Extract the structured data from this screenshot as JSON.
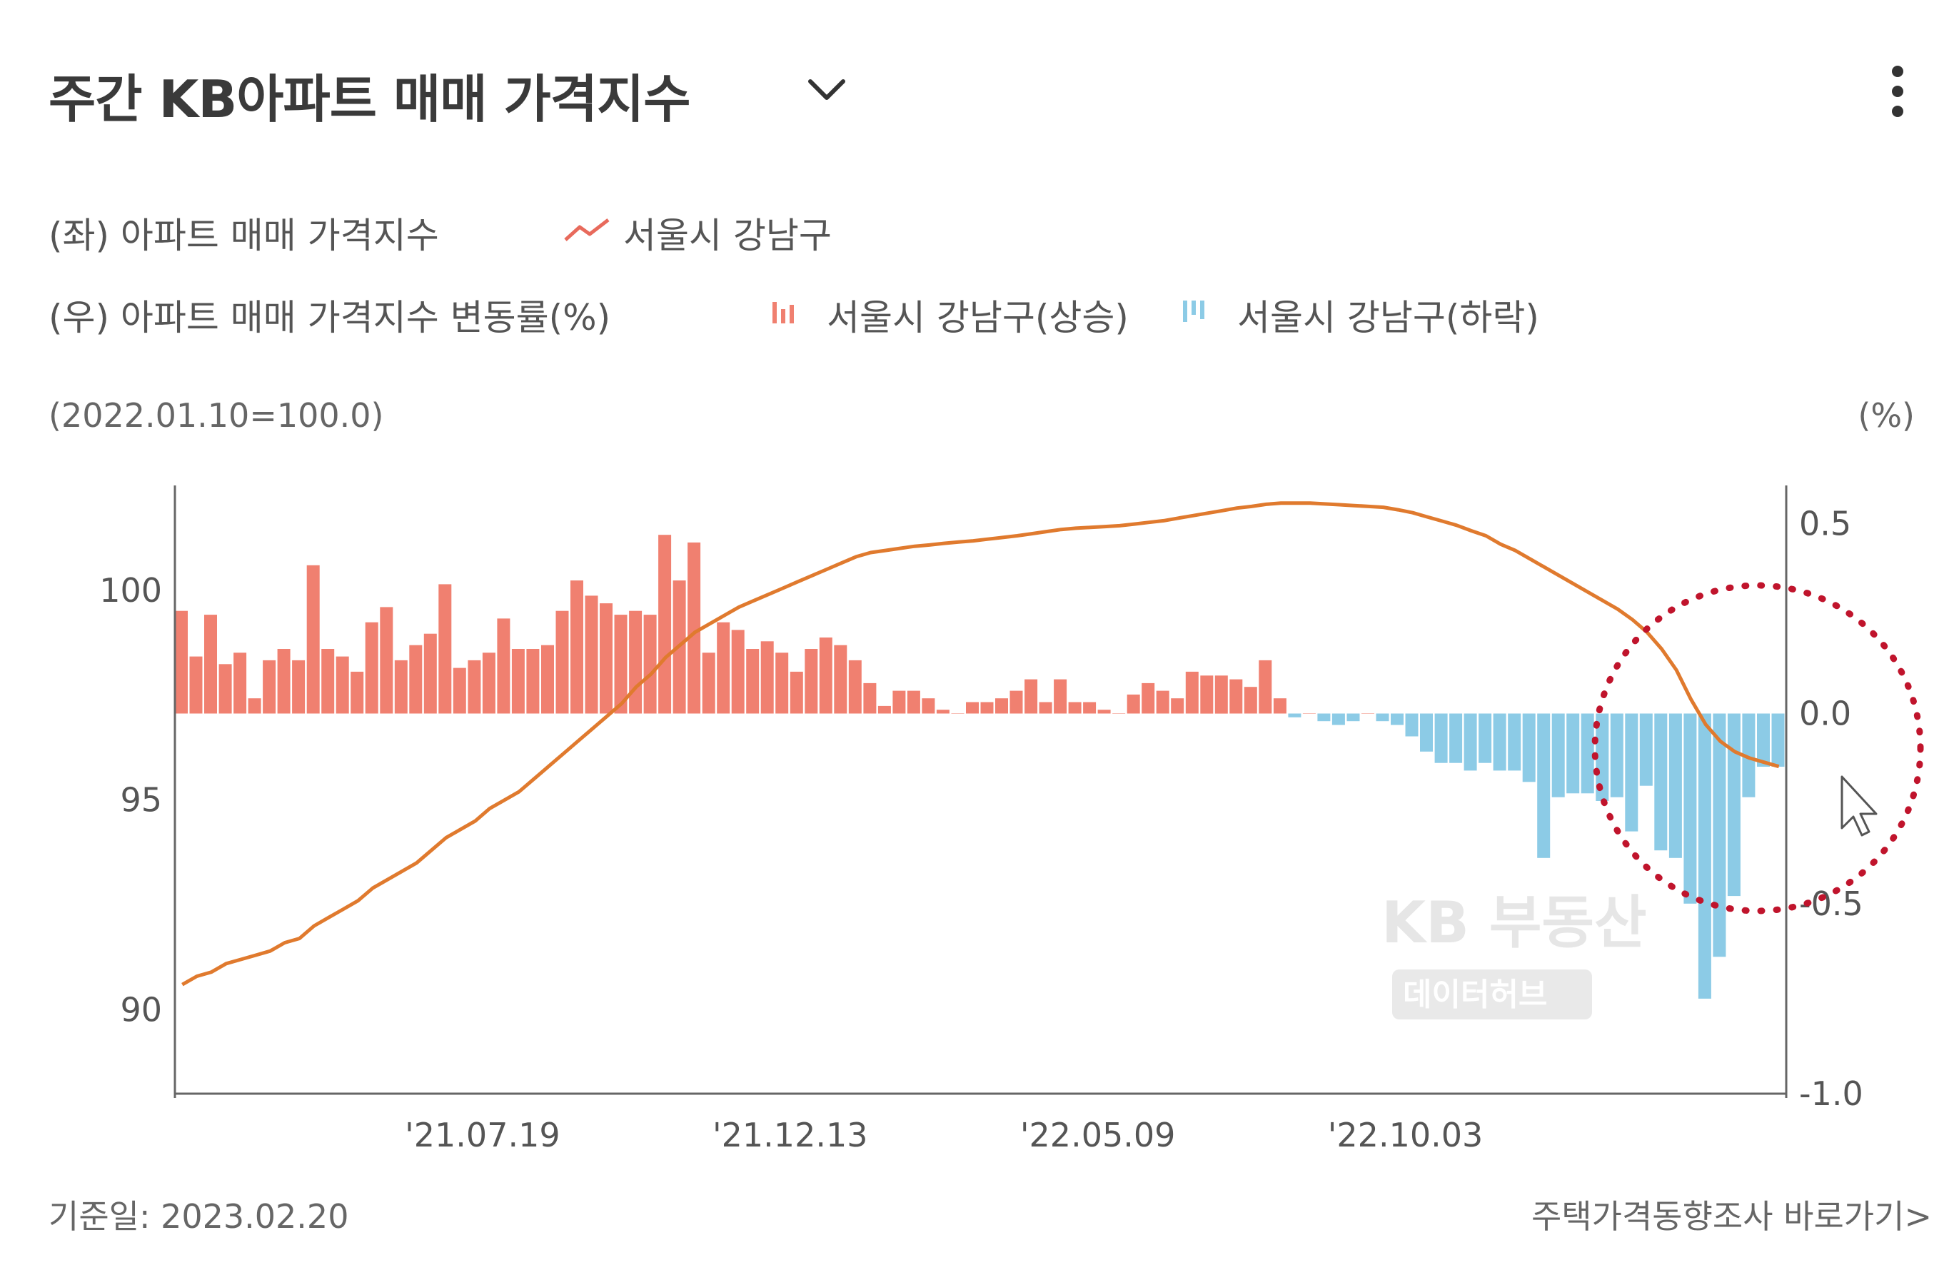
{
  "header": {
    "title": "주간 KB아파트 매매 가격지수",
    "dropdown_icon": "chevron-down-icon",
    "menu_icon": "kebab-menu-icon"
  },
  "legend": {
    "left_axis_label": "(좌) 아파트 매매 가격지수",
    "right_axis_label": "(우) 아파트 매매 가격지수 변동률(%)",
    "line_series": "서울시 강남구",
    "up_series": "서울시 강남구(상승)",
    "down_series": "서울시 강남구(하락)"
  },
  "units": {
    "left": "(2022.01.10=100.0)",
    "right": "(%)"
  },
  "watermark": {
    "line1": "KB 부동산",
    "line2": "데이터허브"
  },
  "footer": {
    "base_date": "기준일: 2023.02.20",
    "link": "주택가격동향조사 바로가기"
  },
  "colors": {
    "line": "#e07a2e",
    "up": "#f08070",
    "down": "#8ccbe6",
    "annotation": "#c0142c"
  },
  "chart_data": {
    "type": "bar+line",
    "bar_count": 110,
    "x_ticks": [
      "'21.07.19",
      "'21.12.13",
      "'22.05.09",
      "'22.10.03"
    ],
    "x_tick_index": [
      21,
      42,
      63,
      84
    ],
    "left_axis": {
      "ticks": [
        90,
        95,
        100
      ],
      "range": [
        88.0,
        102.5
      ]
    },
    "right_axis": {
      "ticks": [
        "0.5",
        "0.0",
        "-0.5",
        "-1.0"
      ],
      "tick_values": [
        0.5,
        0.0,
        -0.5,
        -1.0
      ],
      "range": [
        -1.0,
        0.6
      ]
    },
    "change_rate": [
      0.27,
      0.15,
      0.26,
      0.13,
      0.16,
      0.04,
      0.14,
      0.17,
      0.14,
      0.39,
      0.17,
      0.15,
      0.11,
      0.24,
      0.28,
      0.14,
      0.18,
      0.21,
      0.34,
      0.12,
      0.14,
      0.16,
      0.25,
      0.17,
      0.17,
      0.18,
      0.27,
      0.35,
      0.31,
      0.29,
      0.26,
      0.27,
      0.26,
      0.47,
      0.35,
      0.45,
      0.16,
      0.24,
      0.22,
      0.17,
      0.19,
      0.16,
      0.11,
      0.17,
      0.2,
      0.18,
      0.14,
      0.08,
      0.02,
      0.06,
      0.06,
      0.04,
      0.01,
      0,
      0.03,
      0.03,
      0.04,
      0.06,
      0.09,
      0.03,
      0.09,
      0.03,
      0.03,
      0.01,
      0,
      0.05,
      0.08,
      0.06,
      0.04,
      0.11,
      0.1,
      0.1,
      0.09,
      0.07,
      0.14,
      0.04,
      -0.01,
      0,
      -0.02,
      -0.03,
      -0.02,
      0,
      -0.02,
      -0.03,
      -0.06,
      -0.1,
      -0.13,
      -0.13,
      -0.15,
      -0.13,
      -0.15,
      -0.15,
      -0.18,
      -0.38,
      -0.22,
      -0.21,
      -0.21,
      -0.23,
      -0.22,
      -0.31,
      -0.19,
      -0.36,
      -0.38,
      -0.5,
      -0.75,
      -0.64,
      -0.48,
      -0.22,
      -0.14,
      -0.14
    ],
    "price_index": [
      90.6,
      90.8,
      90.9,
      91.1,
      91.2,
      91.3,
      91.4,
      91.6,
      91.7,
      92.0,
      92.2,
      92.4,
      92.6,
      92.9,
      93.1,
      93.3,
      93.5,
      93.8,
      94.1,
      94.3,
      94.5,
      94.8,
      95.0,
      95.2,
      95.5,
      95.8,
      96.1,
      96.4,
      96.7,
      97.0,
      97.3,
      97.7,
      98.0,
      98.4,
      98.7,
      99.0,
      99.2,
      99.4,
      99.6,
      99.75,
      99.9,
      100.05,
      100.2,
      100.35,
      100.5,
      100.65,
      100.8,
      100.9,
      100.95,
      101.0,
      101.05,
      101.08,
      101.12,
      101.15,
      101.18,
      101.22,
      101.26,
      101.3,
      101.35,
      101.4,
      101.45,
      101.48,
      101.5,
      101.52,
      101.54,
      101.58,
      101.62,
      101.66,
      101.72,
      101.78,
      101.84,
      101.9,
      101.96,
      102.0,
      102.05,
      102.08,
      102.08,
      102.08,
      102.06,
      102.04,
      102.02,
      102.0,
      101.98,
      101.92,
      101.85,
      101.75,
      101.65,
      101.55,
      101.42,
      101.3,
      101.1,
      100.95,
      100.75,
      100.55,
      100.35,
      100.15,
      99.95,
      99.75,
      99.55,
      99.3,
      99.0,
      98.6,
      98.1,
      97.4,
      96.8,
      96.4,
      96.15,
      96.0,
      95.9,
      95.8
    ]
  }
}
